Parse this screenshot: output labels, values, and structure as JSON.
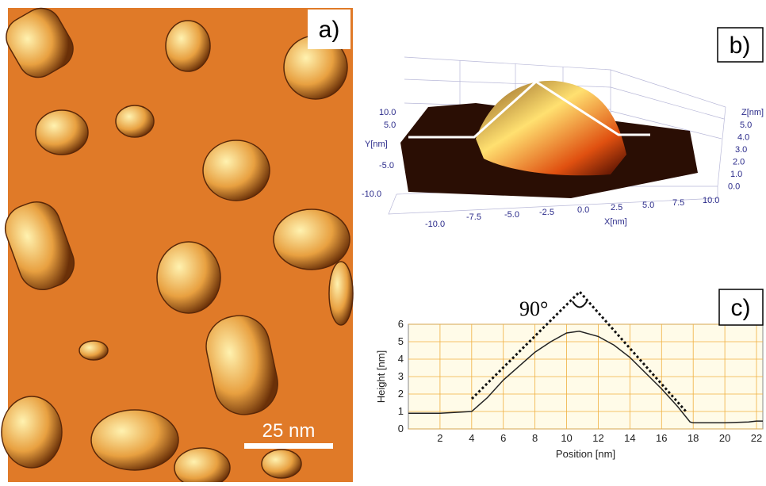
{
  "figure": {
    "panel_a": {
      "label": "a)",
      "scale_bar": "25 nm"
    },
    "panel_b": {
      "label": "b)",
      "y_axis_label": "Y[nm]",
      "x_axis_label": "X[nm]",
      "z_axis_label": "Z[nm]",
      "y_tick_labels": [
        "10.0",
        "5.0",
        "-5.0",
        "-10.0"
      ],
      "x_tick_labels": [
        "-10.0",
        "-7.5",
        "-5.0",
        "-2.5",
        "0.0",
        "2.5",
        "5.0",
        "7.5",
        "10.0"
      ],
      "z_tick_labels": [
        "5.0",
        "4.0",
        "3.0",
        "2.0",
        "1.0",
        "0.0"
      ]
    },
    "panel_c": {
      "label": "c)",
      "annotation": "90°"
    }
  },
  "chart_data": {
    "type": "line",
    "x_label": "Position [nm]",
    "y_label": "Height [nm]",
    "x": [
      0,
      2,
      4,
      5,
      6,
      7,
      8,
      9,
      10,
      10.8,
      12,
      13,
      14,
      15,
      16,
      17,
      17.8,
      18,
      20,
      21.5,
      22,
      22.4
    ],
    "series": [
      {
        "color": "#222222",
        "values": [
          0.9,
          0.9,
          1.0,
          1.8,
          2.8,
          3.6,
          4.4,
          5.0,
          5.5,
          5.6,
          5.3,
          4.8,
          4.1,
          3.2,
          2.3,
          1.3,
          0.4,
          0.35,
          0.35,
          0.4,
          0.45,
          0.45
        ]
      }
    ],
    "xlim": [
      0,
      22.4
    ],
    "ylim": [
      0,
      6
    ],
    "xticks": [
      2,
      4,
      6,
      8,
      10,
      12,
      14,
      16,
      18,
      20,
      22
    ],
    "yticks": [
      0,
      1,
      2,
      3,
      4,
      5,
      6
    ],
    "grid": true,
    "grid_color": "#f0b040"
  }
}
